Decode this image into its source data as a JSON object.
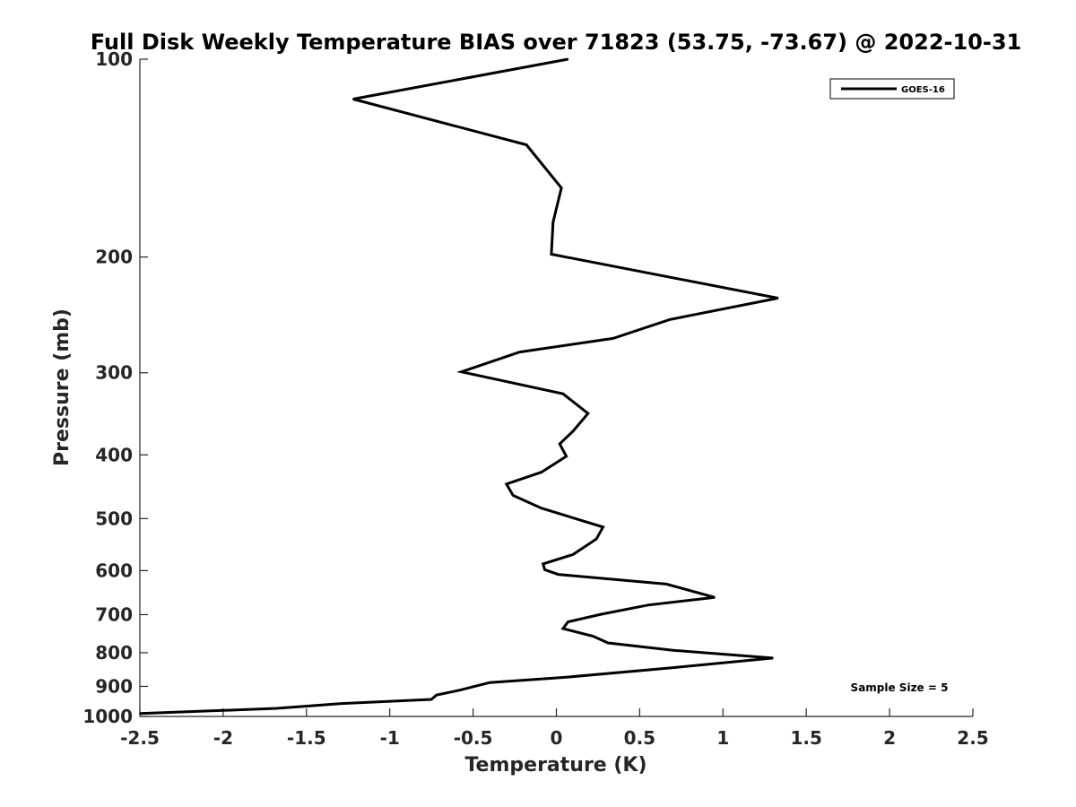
{
  "chart_data": {
    "type": "line",
    "title": "Full Disk Weekly Temperature BIAS over 71823 (53.75, -73.67) @ 2022-10-31",
    "xlabel": "Temperature (K)",
    "ylabel": "Pressure (mb)",
    "xlim": [
      -2.5,
      2.5
    ],
    "ylim": [
      100,
      1000
    ],
    "y_scale": "log",
    "y_reversed": true,
    "x_ticks": [
      -2.5,
      -2,
      -1.5,
      -1,
      -0.5,
      0,
      0.5,
      1,
      1.5,
      2,
      2.5
    ],
    "x_tick_labels": [
      "-2.5",
      "-2",
      "-1.5",
      "-1",
      "-0.5",
      "0",
      "0.5",
      "1",
      "1.5",
      "2",
      "2.5"
    ],
    "y_ticks": [
      100,
      200,
      300,
      400,
      500,
      600,
      700,
      800,
      900,
      1000
    ],
    "y_tick_labels": [
      "100",
      "200",
      "300",
      "400",
      "500",
      "600",
      "700",
      "800",
      "900",
      "1000"
    ],
    "grid": false,
    "legend_position": "top-right",
    "line_color": "#000000",
    "series": [
      {
        "name": "GOES-16",
        "x": [
          0.07,
          -1.22,
          -0.18,
          0.03,
          -0.02,
          -0.03,
          1.33,
          0.68,
          0.34,
          -0.22,
          -0.57,
          0.04,
          0.19,
          0.1,
          0.02,
          0.06,
          -0.09,
          -0.3,
          -0.26,
          -0.09,
          0.28,
          0.24,
          0.1,
          -0.08,
          -0.07,
          0.01,
          0.66,
          0.95,
          0.55,
          0.27,
          0.07,
          0.04,
          0.22,
          0.31,
          0.7,
          1.3,
          0.7,
          0.05,
          -0.4,
          -0.58,
          -0.72,
          -0.75,
          -1.3,
          -1.68,
          -2.5
        ],
        "y": [
          100,
          115,
          135,
          157,
          177,
          198,
          231,
          249,
          266,
          279,
          299,
          323,
          346,
          368,
          385,
          402,
          425,
          443,
          461,
          482,
          515,
          537,
          567,
          586,
          598,
          608,
          629,
          659,
          677,
          699,
          718,
          735,
          755,
          773,
          793,
          815,
          843,
          872,
          888,
          912,
          928,
          942,
          956,
          972,
          990
        ]
      }
    ],
    "annotations": [
      "Sample Size = 5"
    ]
  }
}
